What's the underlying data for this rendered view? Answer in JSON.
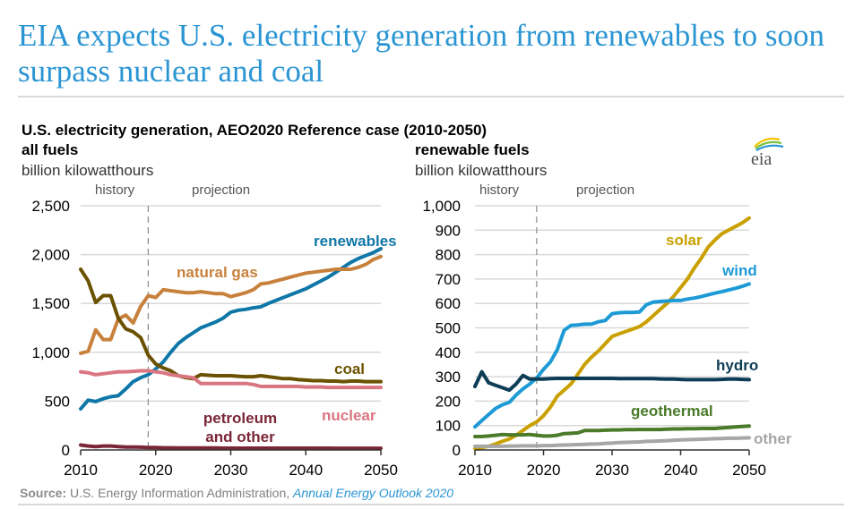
{
  "headline": "EIA expects U.S. electricity generation from renewables to soon surpass nuclear and coal",
  "subtitle": "U.S. electricity generation, AEO2020 Reference case (2010-2050)",
  "source_label": "Source:",
  "source_text": " U.S. Energy Information Administration, ",
  "source_link": "Annual Energy Outlook 2020",
  "logo_text": "eia",
  "chart_data": [
    {
      "type": "line",
      "title": "all fuels",
      "ylabel": "billion kilowatthours",
      "xlabel": "",
      "xlim": [
        2010,
        2050
      ],
      "ylim": [
        0,
        2500
      ],
      "yticks": [
        0,
        500,
        1000,
        1500,
        2000,
        2500
      ],
      "ytick_labels": [
        "0",
        "500",
        "1,000",
        "1,500",
        "2,000",
        "2,500"
      ],
      "xticks": [
        2010,
        2020,
        2030,
        2040,
        2050
      ],
      "xtick_labels": [
        "2010",
        "2020",
        "2030",
        "2040",
        "2050"
      ],
      "grid": true,
      "divider_year": 2019,
      "history_label": "history",
      "projection_label": "projection",
      "x": [
        2010,
        2011,
        2012,
        2013,
        2014,
        2015,
        2016,
        2017,
        2018,
        2019,
        2020,
        2021,
        2022,
        2023,
        2024,
        2025,
        2026,
        2027,
        2028,
        2029,
        2030,
        2031,
        2032,
        2033,
        2034,
        2035,
        2036,
        2037,
        2038,
        2039,
        2040,
        2041,
        2042,
        2043,
        2044,
        2045,
        2046,
        2047,
        2048,
        2049,
        2050
      ],
      "series": [
        {
          "name": "renewables",
          "color": "#0f77a8",
          "label_pos": "end-above",
          "values": [
            420,
            510,
            495,
            525,
            545,
            555,
            625,
            700,
            740,
            770,
            830,
            900,
            1000,
            1090,
            1150,
            1200,
            1250,
            1280,
            1310,
            1350,
            1410,
            1430,
            1440,
            1455,
            1465,
            1500,
            1530,
            1560,
            1590,
            1620,
            1650,
            1690,
            1730,
            1770,
            1820,
            1870,
            1920,
            1960,
            1990,
            2020,
            2060
          ]
        },
        {
          "name": "natural gas",
          "color": "#c8813c",
          "label_pos": "mid-above",
          "values": [
            990,
            1010,
            1230,
            1130,
            1130,
            1340,
            1380,
            1300,
            1470,
            1580,
            1560,
            1640,
            1630,
            1620,
            1610,
            1610,
            1620,
            1610,
            1600,
            1600,
            1570,
            1590,
            1610,
            1640,
            1700,
            1710,
            1730,
            1750,
            1770,
            1790,
            1810,
            1820,
            1830,
            1840,
            1850,
            1850,
            1850,
            1870,
            1900,
            1950,
            1980
          ]
        },
        {
          "name": "coal",
          "color": "#6b5200",
          "label_pos": "end-above",
          "values": [
            1850,
            1730,
            1510,
            1580,
            1580,
            1350,
            1240,
            1210,
            1150,
            970,
            880,
            840,
            810,
            760,
            740,
            730,
            770,
            765,
            760,
            760,
            760,
            755,
            750,
            750,
            760,
            750,
            740,
            730,
            730,
            720,
            715,
            710,
            710,
            705,
            705,
            700,
            705,
            705,
            700,
            700,
            700
          ]
        },
        {
          "name": "nuclear",
          "color": "#d97681",
          "label_pos": "end-below",
          "values": [
            800,
            790,
            770,
            780,
            790,
            800,
            800,
            805,
            810,
            810,
            800,
            790,
            770,
            760,
            750,
            740,
            680,
            680,
            680,
            680,
            680,
            680,
            680,
            670,
            650,
            650,
            650,
            650,
            650,
            650,
            645,
            645,
            645,
            640,
            640,
            640,
            640,
            640,
            640,
            640,
            640
          ]
        },
        {
          "name": "petroleum and other",
          "color": "#7a2636",
          "label_pos": "mid-above",
          "values": [
            50,
            40,
            35,
            40,
            40,
            35,
            30,
            30,
            28,
            25,
            25,
            22,
            22,
            20,
            20,
            20,
            20,
            20,
            20,
            18,
            18,
            18,
            18,
            18,
            18,
            18,
            18,
            18,
            18,
            18,
            18,
            18,
            18,
            18,
            17,
            17,
            17,
            17,
            17,
            17,
            17
          ]
        }
      ]
    },
    {
      "type": "line",
      "title": "renewable fuels",
      "ylabel": "billion kilowatthours",
      "xlabel": "",
      "xlim": [
        2010,
        2050
      ],
      "ylim": [
        0,
        1000
      ],
      "yticks": [
        0,
        100,
        200,
        300,
        400,
        500,
        600,
        700,
        800,
        900,
        1000
      ],
      "ytick_labels": [
        "0",
        "100",
        "200",
        "300",
        "400",
        "500",
        "600",
        "700",
        "800",
        "900",
        "1,000"
      ],
      "xticks": [
        2010,
        2020,
        2030,
        2040,
        2050
      ],
      "xtick_labels": [
        "2010",
        "2020",
        "2030",
        "2040",
        "2050"
      ],
      "grid": true,
      "divider_year": 2019,
      "history_label": "history",
      "projection_label": "projection",
      "x": [
        2010,
        2011,
        2012,
        2013,
        2014,
        2015,
        2016,
        2017,
        2018,
        2019,
        2020,
        2021,
        2022,
        2023,
        2024,
        2025,
        2026,
        2027,
        2028,
        2029,
        2030,
        2031,
        2032,
        2033,
        2034,
        2035,
        2036,
        2037,
        2038,
        2039,
        2040,
        2041,
        2042,
        2043,
        2044,
        2045,
        2046,
        2047,
        2048,
        2049,
        2050
      ],
      "series": [
        {
          "name": "solar",
          "color": "#c9a000",
          "label_pos": "upper",
          "values": [
            5,
            10,
            15,
            25,
            35,
            45,
            60,
            80,
            100,
            115,
            140,
            175,
            220,
            245,
            270,
            310,
            350,
            380,
            405,
            435,
            465,
            475,
            485,
            495,
            505,
            525,
            550,
            575,
            600,
            630,
            665,
            700,
            745,
            785,
            830,
            860,
            885,
            900,
            915,
            930,
            950
          ]
        },
        {
          "name": "wind",
          "color": "#1d9ad6",
          "label_pos": "end-above",
          "values": [
            95,
            120,
            145,
            170,
            185,
            195,
            225,
            250,
            270,
            295,
            330,
            360,
            410,
            490,
            510,
            512,
            515,
            515,
            525,
            530,
            558,
            562,
            563,
            563,
            565,
            595,
            605,
            608,
            610,
            612,
            612,
            618,
            622,
            628,
            635,
            642,
            648,
            655,
            662,
            670,
            680
          ]
        },
        {
          "name": "hydro",
          "color": "#0d3d56",
          "label_pos": "end-above",
          "values": [
            260,
            320,
            275,
            265,
            255,
            245,
            270,
            305,
            290,
            290,
            290,
            292,
            293,
            293,
            293,
            293,
            293,
            293,
            293,
            293,
            293,
            292,
            292,
            292,
            292,
            292,
            292,
            291,
            290,
            290,
            289,
            288,
            288,
            288,
            288,
            288,
            289,
            290,
            290,
            289,
            288
          ]
        },
        {
          "name": "geothermal",
          "color": "#4a7a2a",
          "label_pos": "upper",
          "values": [
            55,
            55,
            57,
            60,
            63,
            62,
            62,
            62,
            63,
            60,
            57,
            57,
            60,
            67,
            68,
            70,
            80,
            80,
            80,
            81,
            82,
            82,
            83,
            83,
            84,
            84,
            84,
            84,
            85,
            86,
            86,
            87,
            87,
            88,
            88,
            88,
            90,
            92,
            94,
            96,
            98
          ]
        },
        {
          "name": "other",
          "color": "#a6a6a6",
          "label_pos": "end-right",
          "values": [
            15,
            15,
            15,
            15,
            15,
            16,
            16,
            17,
            17,
            17,
            18,
            18,
            19,
            20,
            21,
            22,
            23,
            24,
            25,
            27,
            28,
            30,
            31,
            32,
            33,
            35,
            36,
            37,
            38,
            40,
            41,
            42,
            43,
            44,
            45,
            46,
            47,
            48,
            48,
            49,
            50
          ]
        }
      ]
    }
  ]
}
